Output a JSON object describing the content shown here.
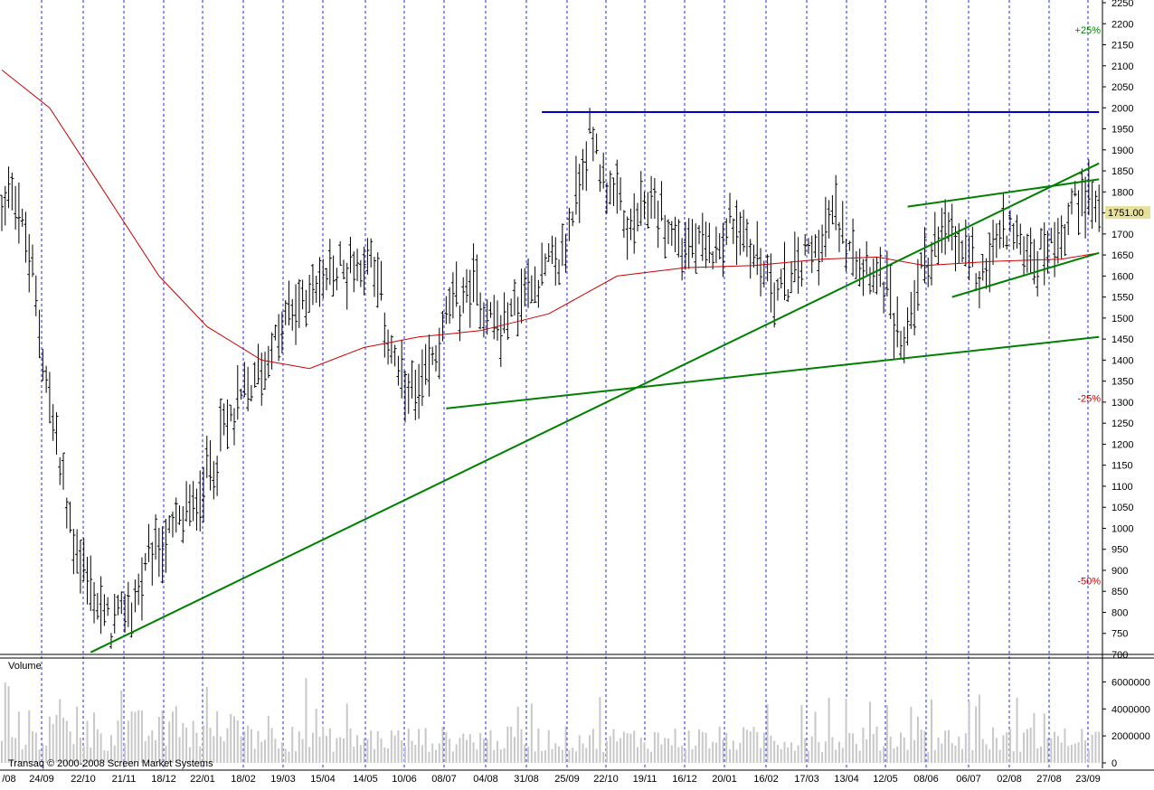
{
  "chart_data": {
    "type": "candlestick",
    "price_panel": {
      "ylim": [
        700,
        2250
      ],
      "y_ticks": [
        700,
        750,
        800,
        850,
        900,
        950,
        1000,
        1050,
        1100,
        1150,
        1200,
        1250,
        1300,
        1350,
        1400,
        1450,
        1500,
        1550,
        1600,
        1650,
        1700,
        1750,
        1800,
        1850,
        1900,
        1950,
        2000,
        2050,
        2100,
        2150,
        2200,
        2250
      ],
      "last_price_label": "1751.00",
      "last_price": 1751,
      "grid": "vertical dashed lines at date ticks"
    },
    "x_ticks": [
      "/08",
      "24/09",
      "22/10",
      "21/11",
      "18/12",
      "22/01",
      "18/02",
      "19/03",
      "15/04",
      "14/05",
      "10/06",
      "08/07",
      "04/08",
      "31/08",
      "25/09",
      "22/10",
      "19/11",
      "16/12",
      "20/01",
      "16/02",
      "17/03",
      "13/04",
      "12/05",
      "08/06",
      "06/07",
      "02/08",
      "27/08",
      "23/09"
    ],
    "price_series_anchors": [
      {
        "i": 0,
        "price": 1750
      },
      {
        "i": 3,
        "price": 1840
      },
      {
        "i": 10,
        "price": 1550
      },
      {
        "i": 14,
        "price": 1300
      },
      {
        "i": 20,
        "price": 1000
      },
      {
        "i": 26,
        "price": 850
      },
      {
        "i": 32,
        "price": 760
      },
      {
        "i": 38,
        "price": 820
      },
      {
        "i": 46,
        "price": 950
      },
      {
        "i": 56,
        "price": 1050
      },
      {
        "i": 66,
        "price": 1250
      },
      {
        "i": 76,
        "price": 1380
      },
      {
        "i": 84,
        "price": 1500
      },
      {
        "i": 92,
        "price": 1580
      },
      {
        "i": 100,
        "price": 1620
      },
      {
        "i": 108,
        "price": 1650
      },
      {
        "i": 116,
        "price": 1350
      },
      {
        "i": 122,
        "price": 1300
      },
      {
        "i": 130,
        "price": 1500
      },
      {
        "i": 138,
        "price": 1580
      },
      {
        "i": 146,
        "price": 1470
      },
      {
        "i": 156,
        "price": 1600
      },
      {
        "i": 164,
        "price": 1640
      },
      {
        "i": 172,
        "price": 1940
      },
      {
        "i": 178,
        "price": 1800
      },
      {
        "i": 184,
        "price": 1700
      },
      {
        "i": 190,
        "price": 1780
      },
      {
        "i": 198,
        "price": 1680
      },
      {
        "i": 206,
        "price": 1650
      },
      {
        "i": 214,
        "price": 1730
      },
      {
        "i": 222,
        "price": 1630
      },
      {
        "i": 228,
        "price": 1560
      },
      {
        "i": 236,
        "price": 1660
      },
      {
        "i": 244,
        "price": 1740
      },
      {
        "i": 252,
        "price": 1650
      },
      {
        "i": 258,
        "price": 1600
      },
      {
        "i": 263,
        "price": 1420
      },
      {
        "i": 270,
        "price": 1650
      },
      {
        "i": 278,
        "price": 1700
      },
      {
        "i": 286,
        "price": 1600
      },
      {
        "i": 294,
        "price": 1720
      },
      {
        "i": 302,
        "price": 1640
      },
      {
        "i": 310,
        "price": 1700
      },
      {
        "i": 316,
        "price": 1820
      },
      {
        "i": 320,
        "price": 1751
      }
    ],
    "moving_average": {
      "color": "#cc0000",
      "points": [
        {
          "i": 0,
          "price": 2090
        },
        {
          "i": 14,
          "price": 2000
        },
        {
          "i": 30,
          "price": 1800
        },
        {
          "i": 46,
          "price": 1600
        },
        {
          "i": 60,
          "price": 1480
        },
        {
          "i": 76,
          "price": 1400
        },
        {
          "i": 90,
          "price": 1380
        },
        {
          "i": 106,
          "price": 1430
        },
        {
          "i": 122,
          "price": 1455
        },
        {
          "i": 140,
          "price": 1470
        },
        {
          "i": 160,
          "price": 1510
        },
        {
          "i": 180,
          "price": 1600
        },
        {
          "i": 200,
          "price": 1620
        },
        {
          "i": 220,
          "price": 1625
        },
        {
          "i": 240,
          "price": 1640
        },
        {
          "i": 256,
          "price": 1645
        },
        {
          "i": 270,
          "price": 1625
        },
        {
          "i": 290,
          "price": 1635
        },
        {
          "i": 310,
          "price": 1640
        },
        {
          "i": 321,
          "price": 1655
        }
      ]
    },
    "trend_lines": [
      {
        "color": "#0000cc",
        "from": {
          "i": 158,
          "price": 1990
        },
        "to": {
          "i": 321,
          "price": 1990
        }
      },
      {
        "color": "#008000",
        "from": {
          "i": 26,
          "price": 705
        },
        "to": {
          "i": 321,
          "price": 1868
        }
      },
      {
        "color": "#008000",
        "from": {
          "i": 130,
          "price": 1285
        },
        "to": {
          "i": 321,
          "price": 1455
        }
      },
      {
        "color": "#008000",
        "from": {
          "i": 265,
          "price": 1765
        },
        "to": {
          "i": 321,
          "price": 1830
        }
      },
      {
        "color": "#008000",
        "from": {
          "i": 278,
          "price": 1550
        },
        "to": {
          "i": 321,
          "price": 1655
        }
      }
    ],
    "percent_labels": [
      {
        "text": "+25%",
        "price": 2185,
        "color": "#008000"
      },
      {
        "text": "-25%",
        "price": 1310,
        "color": "#cc0000"
      },
      {
        "text": "-50%",
        "price": 875,
        "color": "#cc0000"
      }
    ],
    "volume_panel": {
      "label": "Volume",
      "ylim": [
        0,
        7500000
      ],
      "y_ticks": [
        0,
        2000000,
        4000000,
        6000000
      ],
      "y_tick_labels": [
        "0",
        "2000000",
        "4000000",
        "6000000"
      ],
      "bar_color": "#c8c8c8"
    },
    "credit": "Transaq © 2000-2008 Screen Market Systems"
  }
}
